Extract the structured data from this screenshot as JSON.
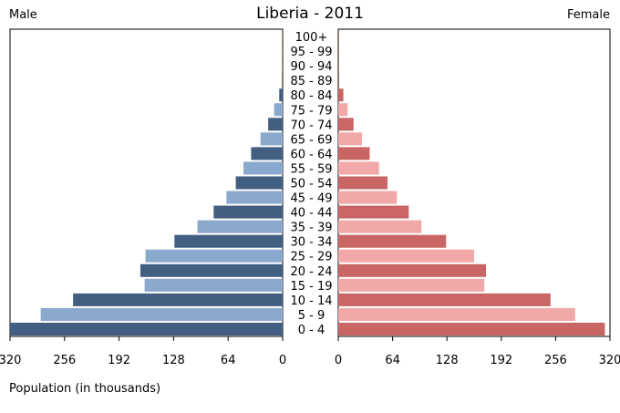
{
  "chart_data": {
    "type": "bar",
    "title": "Liberia - 2011",
    "left_label": "Male",
    "right_label": "Female",
    "xlabel": "Population (in thousands)",
    "categories": [
      "0 - 4",
      "5 - 9",
      "10 - 14",
      "15 - 19",
      "20 - 24",
      "25 - 29",
      "30 - 34",
      "35 - 39",
      "40 - 44",
      "45 - 49",
      "50 - 54",
      "55 - 59",
      "60 - 64",
      "65 - 69",
      "70 - 74",
      "75 - 79",
      "80 - 84",
      "85 - 89",
      "90 - 94",
      "95 - 99",
      "100+"
    ],
    "series": [
      {
        "name": "Male",
        "values": [
          320,
          284,
          246,
          162,
          167,
          161,
          127,
          100,
          81,
          66,
          55,
          46,
          37,
          26,
          17,
          10,
          4,
          1,
          0.5,
          0.3,
          0.2
        ]
      },
      {
        "name": "Female",
        "values": [
          314,
          279,
          250,
          172,
          174,
          160,
          127,
          98,
          83,
          69,
          58,
          48,
          37,
          28,
          18,
          11,
          6,
          1,
          0.5,
          0.3,
          0.2
        ]
      }
    ],
    "xlim": [
      0,
      320
    ],
    "xticks": [
      320,
      256,
      192,
      128,
      64,
      0
    ],
    "colors": {
      "male_dark": "#425f82",
      "male_light": "#8aa9cc",
      "female_dark": "#c96565",
      "female_light": "#f0a8a8",
      "tiny_bar": "#8b6a46"
    }
  }
}
